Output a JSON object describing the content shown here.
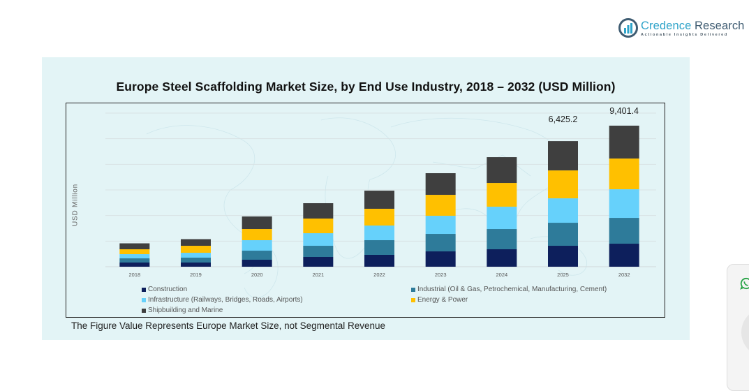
{
  "brand": {
    "name_part1": "Credence",
    "name_part2": " Research",
    "tagline": "Actionable Insights Delivered",
    "icon": "bar-chart-logo-icon"
  },
  "chart_data": {
    "type": "bar",
    "stacked": true,
    "title": "Europe Steel Scaffolding Market Size, by End Use Industry, 2018 – 2032 (USD Million)",
    "xlabel": "",
    "ylabel": "USD Million",
    "categories": [
      "2018",
      "2019",
      "2020",
      "2021",
      "2022",
      "2023",
      "2024",
      "2025",
      "2032"
    ],
    "grid": true,
    "legend_position": "bottom",
    "series": [
      {
        "name": "Construction",
        "color": "#0d1f5c",
        "values": [
          214,
          214,
          357,
          500,
          607,
          785,
          893,
          1071,
          1535
        ]
      },
      {
        "name": "Industrial (Oil & Gas, Petrochemical, Manufacturing, Cement)",
        "color": "#2e7b9a",
        "values": [
          214,
          250,
          464,
          571,
          750,
          893,
          1035,
          1178,
          1721
        ]
      },
      {
        "name": "Infrastructure (Railways, Bridges, Roads, Airports)",
        "color": "#66d1fb",
        "values": [
          214,
          250,
          536,
          643,
          750,
          928,
          1142,
          1249,
          1907
        ]
      },
      {
        "name": "Energy & Power",
        "color": "#ffc000",
        "values": [
          250,
          357,
          571,
          750,
          857,
          1071,
          1214,
          1428,
          2047
        ]
      },
      {
        "name": "Shipbuilding and Marine",
        "color": "#3f3f3f",
        "values": [
          304,
          339,
          642,
          785,
          927,
          1107,
          1321,
          1499,
          2191
        ]
      }
    ],
    "totals": [
      1196,
      1410,
      2570,
      3249,
      3891,
      4784,
      5605,
      6425.2,
      9401.4
    ],
    "data_labels": [
      {
        "category": "2025",
        "text": "6,425.2"
      },
      {
        "category": "2032",
        "text": "9,401.4"
      }
    ],
    "ylim": [
      0,
      9800
    ],
    "footnote": "The Figure Value Represents Europe Market Size, not Segmental Revenue"
  },
  "widget": {
    "icon": "whatsapp-icon"
  }
}
